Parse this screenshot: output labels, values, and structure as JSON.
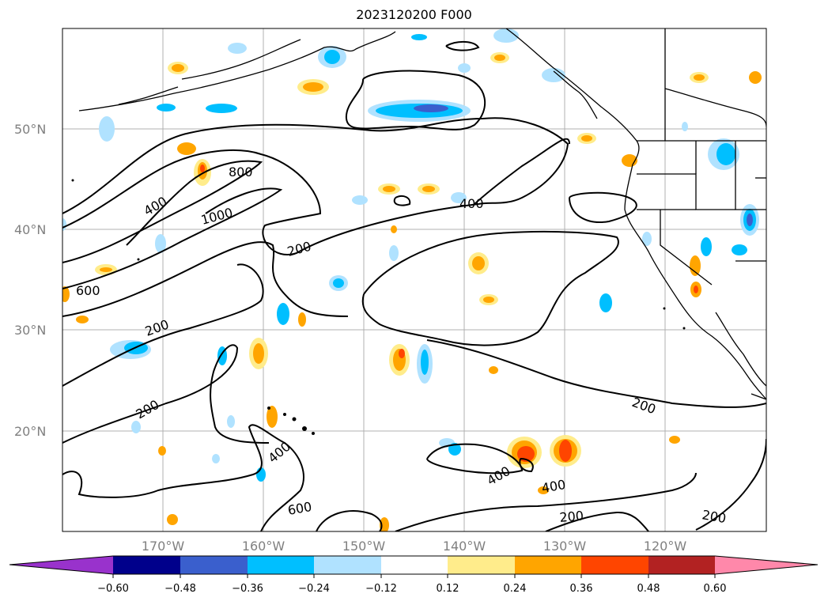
{
  "title": "2023120200 F000",
  "axes": {
    "lon_labels": [
      "170°W",
      "160°W",
      "150°W",
      "140°W",
      "130°W",
      "120°W"
    ],
    "lat_labels": [
      "50°N",
      "40°N",
      "30°N",
      "20°N"
    ]
  },
  "contour_labels": [
    "400",
    "800",
    "1000",
    "200",
    "600",
    "200",
    "400",
    "200",
    "200",
    "400",
    "400",
    "400",
    "600",
    "200",
    "200"
  ],
  "colorbar": {
    "ticks": [
      "−0.60",
      "−0.48",
      "−0.36",
      "−0.24",
      "−0.12",
      "0.12",
      "0.24",
      "0.36",
      "0.48",
      "0.60"
    ],
    "colors": [
      "#9932cc",
      "#00008b",
      "#3a5fcd",
      "#00bfff",
      "#b0e2ff",
      "#ffffff",
      "#ffec8b",
      "#ffa500",
      "#ff4500",
      "#b22222",
      "#ff88aa"
    ]
  }
}
